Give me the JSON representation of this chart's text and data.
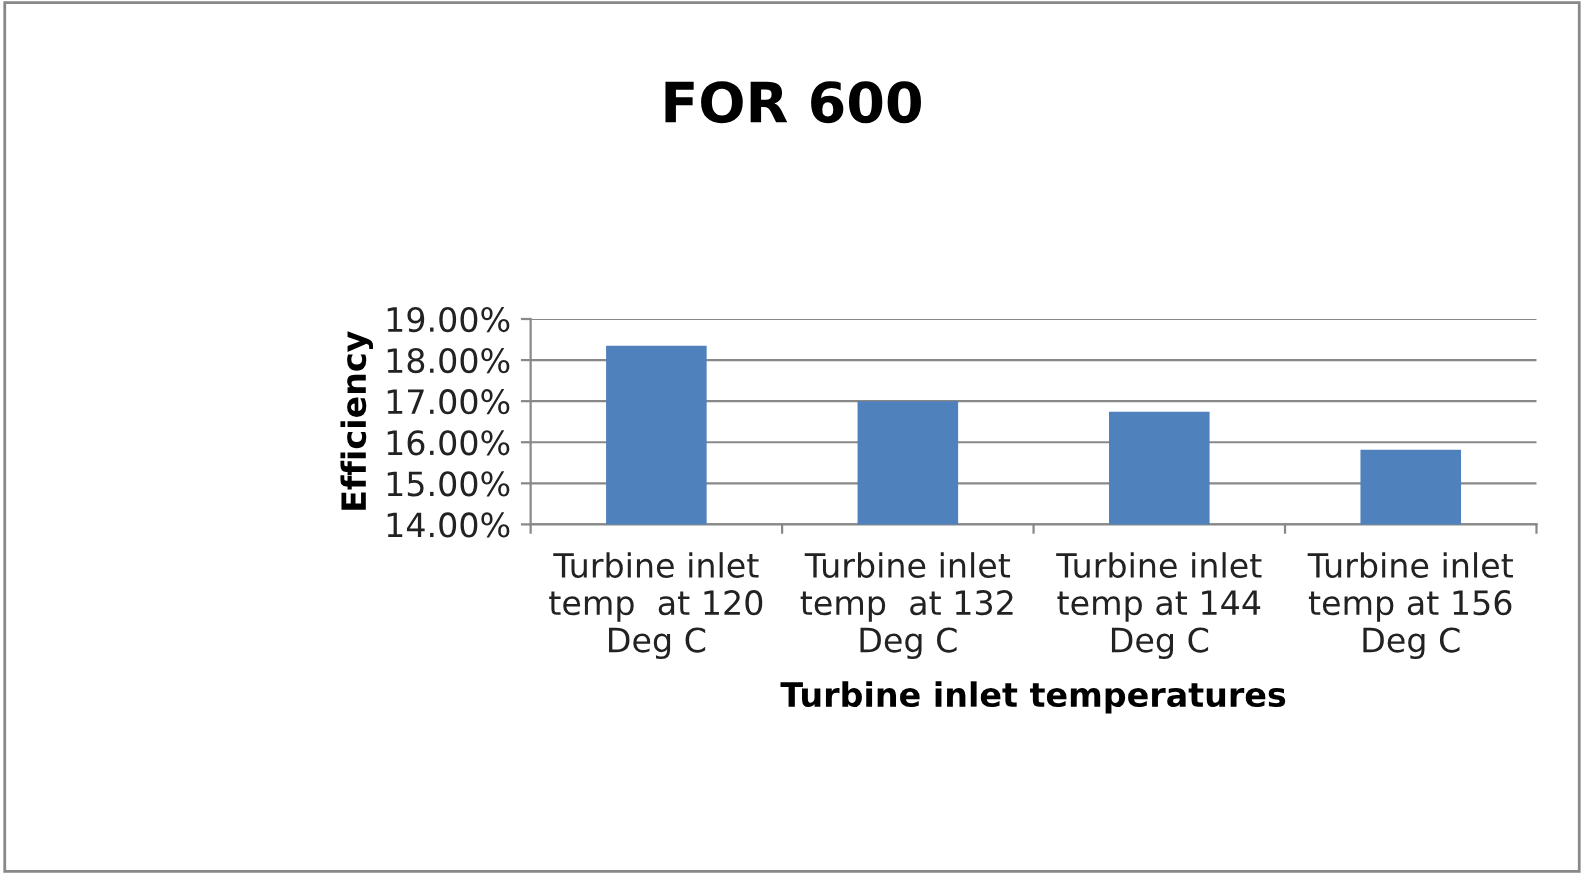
{
  "chart_data": {
    "type": "bar",
    "title": "FOR 600",
    "xlabel": "Turbine inlet temperatures",
    "ylabel": "Efficiency",
    "categories": [
      "Turbine inlet\ntemp  at 120\nDeg C",
      "Turbine inlet\ntemp  at 132\nDeg C",
      "Turbine inlet\ntemp at 144\nDeg C",
      "Turbine inlet\ntemp at 156\nDeg C"
    ],
    "values": [
      18.35,
      17.0,
      16.74,
      15.82
    ],
    "color": "#4f81bd",
    "ylim": [
      14,
      19
    ],
    "yticks": [
      {
        "value": 14,
        "label": "14.00%"
      },
      {
        "value": 15,
        "label": "15.00%"
      },
      {
        "value": 16,
        "label": "16.00%"
      },
      {
        "value": 17,
        "label": "17.00%"
      },
      {
        "value": 18,
        "label": "18.00%"
      },
      {
        "value": 19,
        "label": "19.00%"
      }
    ],
    "grid": "y",
    "legend": false
  }
}
